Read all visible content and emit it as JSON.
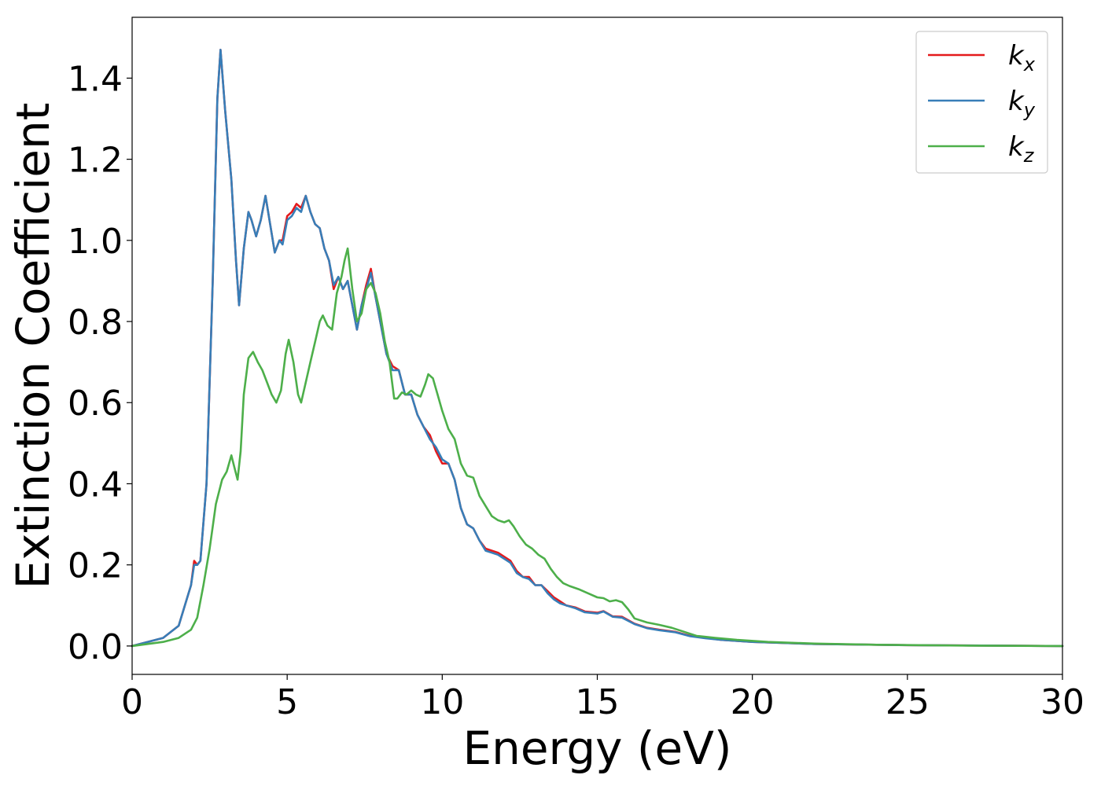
{
  "chart_data": {
    "type": "line",
    "xlabel": "Energy (eV)",
    "ylabel": "Extinction Coefficient",
    "xlim": [
      0,
      30
    ],
    "ylim": [
      -0.07,
      1.55
    ],
    "xticks": [
      0,
      5,
      10,
      15,
      20,
      25,
      30
    ],
    "yticks": [
      0.0,
      0.2,
      0.4,
      0.6,
      0.8,
      1.0,
      1.2,
      1.4
    ],
    "xtick_labels": [
      "0",
      "5",
      "10",
      "15",
      "20",
      "25",
      "30"
    ],
    "ytick_labels": [
      "0.0",
      "0.2",
      "0.4",
      "0.6",
      "0.8",
      "1.0",
      "1.2",
      "1.4"
    ],
    "grid": false,
    "legend_position": "top-right",
    "series": [
      {
        "name": "k",
        "sub": "x",
        "color": "#e41a1c",
        "points": [
          [
            0,
            0
          ],
          [
            0.5,
            0.01
          ],
          [
            1,
            0.02
          ],
          [
            1.5,
            0.05
          ],
          [
            1.9,
            0.15
          ],
          [
            2.0,
            0.21
          ],
          [
            2.1,
            0.2
          ],
          [
            2.2,
            0.21
          ],
          [
            2.4,
            0.4
          ],
          [
            2.6,
            0.9
          ],
          [
            2.75,
            1.35
          ],
          [
            2.85,
            1.47
          ],
          [
            3.0,
            1.32
          ],
          [
            3.2,
            1.15
          ],
          [
            3.35,
            0.95
          ],
          [
            3.45,
            0.84
          ],
          [
            3.6,
            0.98
          ],
          [
            3.75,
            1.07
          ],
          [
            3.85,
            1.05
          ],
          [
            4.0,
            1.01
          ],
          [
            4.15,
            1.05
          ],
          [
            4.3,
            1.11
          ],
          [
            4.45,
            1.04
          ],
          [
            4.6,
            0.97
          ],
          [
            4.75,
            1.0
          ],
          [
            4.85,
            1.0
          ],
          [
            5.0,
            1.06
          ],
          [
            5.15,
            1.07
          ],
          [
            5.3,
            1.09
          ],
          [
            5.45,
            1.08
          ],
          [
            5.6,
            1.11
          ],
          [
            5.75,
            1.07
          ],
          [
            5.9,
            1.04
          ],
          [
            6.05,
            1.03
          ],
          [
            6.2,
            0.98
          ],
          [
            6.35,
            0.95
          ],
          [
            6.5,
            0.88
          ],
          [
            6.65,
            0.91
          ],
          [
            6.8,
            0.88
          ],
          [
            6.95,
            0.9
          ],
          [
            7.1,
            0.84
          ],
          [
            7.25,
            0.78
          ],
          [
            7.4,
            0.84
          ],
          [
            7.55,
            0.89
          ],
          [
            7.7,
            0.93
          ],
          [
            7.85,
            0.86
          ],
          [
            8.0,
            0.8
          ],
          [
            8.2,
            0.72
          ],
          [
            8.4,
            0.69
          ],
          [
            8.6,
            0.68
          ],
          [
            8.8,
            0.62
          ],
          [
            9.0,
            0.62
          ],
          [
            9.2,
            0.57
          ],
          [
            9.4,
            0.54
          ],
          [
            9.6,
            0.52
          ],
          [
            9.8,
            0.48
          ],
          [
            10.0,
            0.45
          ],
          [
            10.2,
            0.45
          ],
          [
            10.4,
            0.41
          ],
          [
            10.6,
            0.34
          ],
          [
            10.8,
            0.3
          ],
          [
            11.0,
            0.29
          ],
          [
            11.2,
            0.26
          ],
          [
            11.4,
            0.24
          ],
          [
            11.6,
            0.235
          ],
          [
            11.8,
            0.23
          ],
          [
            12.0,
            0.22
          ],
          [
            12.2,
            0.21
          ],
          [
            12.4,
            0.185
          ],
          [
            12.6,
            0.17
          ],
          [
            12.8,
            0.17
          ],
          [
            13.0,
            0.15
          ],
          [
            13.2,
            0.15
          ],
          [
            13.4,
            0.135
          ],
          [
            13.6,
            0.12
          ],
          [
            13.8,
            0.11
          ],
          [
            14.0,
            0.1
          ],
          [
            14.3,
            0.095
          ],
          [
            14.6,
            0.085
          ],
          [
            15.0,
            0.082
          ],
          [
            15.2,
            0.086
          ],
          [
            15.5,
            0.073
          ],
          [
            15.8,
            0.072
          ],
          [
            16.2,
            0.055
          ],
          [
            16.6,
            0.045
          ],
          [
            17.0,
            0.04
          ],
          [
            17.5,
            0.035
          ],
          [
            18.0,
            0.025
          ],
          [
            18.5,
            0.02
          ],
          [
            19.0,
            0.015
          ],
          [
            20.0,
            0.01
          ],
          [
            22.0,
            0.005
          ],
          [
            25.0,
            0.002
          ],
          [
            30.0,
            0.0
          ]
        ]
      },
      {
        "name": "k",
        "sub": "y",
        "color": "#377eb8",
        "points": [
          [
            0,
            0
          ],
          [
            0.5,
            0.01
          ],
          [
            1,
            0.02
          ],
          [
            1.5,
            0.05
          ],
          [
            1.9,
            0.15
          ],
          [
            2.0,
            0.2
          ],
          [
            2.1,
            0.2
          ],
          [
            2.2,
            0.21
          ],
          [
            2.4,
            0.4
          ],
          [
            2.6,
            0.9
          ],
          [
            2.75,
            1.35
          ],
          [
            2.85,
            1.47
          ],
          [
            3.0,
            1.32
          ],
          [
            3.2,
            1.15
          ],
          [
            3.35,
            0.95
          ],
          [
            3.45,
            0.84
          ],
          [
            3.6,
            0.98
          ],
          [
            3.75,
            1.07
          ],
          [
            3.85,
            1.05
          ],
          [
            4.0,
            1.01
          ],
          [
            4.15,
            1.05
          ],
          [
            4.3,
            1.11
          ],
          [
            4.45,
            1.04
          ],
          [
            4.6,
            0.97
          ],
          [
            4.75,
            1.0
          ],
          [
            4.85,
            0.99
          ],
          [
            5.0,
            1.05
          ],
          [
            5.15,
            1.06
          ],
          [
            5.3,
            1.08
          ],
          [
            5.45,
            1.07
          ],
          [
            5.6,
            1.11
          ],
          [
            5.75,
            1.07
          ],
          [
            5.9,
            1.04
          ],
          [
            6.05,
            1.03
          ],
          [
            6.2,
            0.98
          ],
          [
            6.35,
            0.95
          ],
          [
            6.5,
            0.89
          ],
          [
            6.65,
            0.91
          ],
          [
            6.8,
            0.88
          ],
          [
            6.95,
            0.9
          ],
          [
            7.1,
            0.84
          ],
          [
            7.25,
            0.78
          ],
          [
            7.4,
            0.84
          ],
          [
            7.55,
            0.88
          ],
          [
            7.7,
            0.92
          ],
          [
            7.85,
            0.86
          ],
          [
            8.0,
            0.8
          ],
          [
            8.2,
            0.72
          ],
          [
            8.4,
            0.68
          ],
          [
            8.6,
            0.68
          ],
          [
            8.8,
            0.62
          ],
          [
            9.0,
            0.62
          ],
          [
            9.2,
            0.57
          ],
          [
            9.4,
            0.54
          ],
          [
            9.6,
            0.51
          ],
          [
            9.8,
            0.49
          ],
          [
            10.0,
            0.46
          ],
          [
            10.2,
            0.45
          ],
          [
            10.4,
            0.41
          ],
          [
            10.6,
            0.34
          ],
          [
            10.8,
            0.3
          ],
          [
            11.0,
            0.29
          ],
          [
            11.2,
            0.26
          ],
          [
            11.4,
            0.235
          ],
          [
            11.6,
            0.23
          ],
          [
            11.8,
            0.225
          ],
          [
            12.0,
            0.215
          ],
          [
            12.2,
            0.205
          ],
          [
            12.4,
            0.18
          ],
          [
            12.6,
            0.17
          ],
          [
            12.8,
            0.165
          ],
          [
            13.0,
            0.15
          ],
          [
            13.2,
            0.15
          ],
          [
            13.4,
            0.13
          ],
          [
            13.6,
            0.115
          ],
          [
            13.8,
            0.105
          ],
          [
            14.0,
            0.1
          ],
          [
            14.3,
            0.093
          ],
          [
            14.6,
            0.083
          ],
          [
            15.0,
            0.08
          ],
          [
            15.2,
            0.085
          ],
          [
            15.5,
            0.072
          ],
          [
            15.8,
            0.07
          ],
          [
            16.2,
            0.054
          ],
          [
            16.6,
            0.044
          ],
          [
            17.0,
            0.039
          ],
          [
            17.5,
            0.034
          ],
          [
            18.0,
            0.024
          ],
          [
            18.5,
            0.019
          ],
          [
            19.0,
            0.015
          ],
          [
            20.0,
            0.01
          ],
          [
            22.0,
            0.005
          ],
          [
            25.0,
            0.002
          ],
          [
            30.0,
            0.0
          ]
        ]
      },
      {
        "name": "k",
        "sub": "z",
        "color": "#4daf4a",
        "points": [
          [
            0,
            0
          ],
          [
            0.5,
            0.005
          ],
          [
            1,
            0.01
          ],
          [
            1.5,
            0.02
          ],
          [
            1.9,
            0.04
          ],
          [
            2.1,
            0.07
          ],
          [
            2.3,
            0.15
          ],
          [
            2.5,
            0.24
          ],
          [
            2.7,
            0.35
          ],
          [
            2.9,
            0.41
          ],
          [
            3.05,
            0.43
          ],
          [
            3.2,
            0.47
          ],
          [
            3.3,
            0.44
          ],
          [
            3.4,
            0.41
          ],
          [
            3.5,
            0.48
          ],
          [
            3.6,
            0.62
          ],
          [
            3.75,
            0.71
          ],
          [
            3.9,
            0.725
          ],
          [
            4.05,
            0.7
          ],
          [
            4.2,
            0.68
          ],
          [
            4.35,
            0.65
          ],
          [
            4.5,
            0.62
          ],
          [
            4.65,
            0.6
          ],
          [
            4.8,
            0.63
          ],
          [
            4.95,
            0.72
          ],
          [
            5.05,
            0.755
          ],
          [
            5.2,
            0.7
          ],
          [
            5.35,
            0.62
          ],
          [
            5.45,
            0.6
          ],
          [
            5.6,
            0.65
          ],
          [
            5.75,
            0.7
          ],
          [
            5.9,
            0.75
          ],
          [
            6.05,
            0.8
          ],
          [
            6.15,
            0.815
          ],
          [
            6.3,
            0.79
          ],
          [
            6.45,
            0.78
          ],
          [
            6.6,
            0.87
          ],
          [
            6.75,
            0.91
          ],
          [
            6.85,
            0.95
          ],
          [
            6.95,
            0.98
          ],
          [
            7.1,
            0.88
          ],
          [
            7.25,
            0.8
          ],
          [
            7.4,
            0.82
          ],
          [
            7.55,
            0.88
          ],
          [
            7.7,
            0.895
          ],
          [
            7.85,
            0.87
          ],
          [
            8.0,
            0.82
          ],
          [
            8.15,
            0.75
          ],
          [
            8.3,
            0.7
          ],
          [
            8.45,
            0.61
          ],
          [
            8.55,
            0.61
          ],
          [
            8.7,
            0.625
          ],
          [
            8.85,
            0.62
          ],
          [
            9.0,
            0.63
          ],
          [
            9.15,
            0.62
          ],
          [
            9.3,
            0.615
          ],
          [
            9.45,
            0.645
          ],
          [
            9.55,
            0.67
          ],
          [
            9.7,
            0.66
          ],
          [
            9.85,
            0.62
          ],
          [
            10.0,
            0.58
          ],
          [
            10.2,
            0.535
          ],
          [
            10.4,
            0.51
          ],
          [
            10.6,
            0.45
          ],
          [
            10.8,
            0.42
          ],
          [
            11.0,
            0.415
          ],
          [
            11.2,
            0.37
          ],
          [
            11.4,
            0.345
          ],
          [
            11.6,
            0.32
          ],
          [
            11.8,
            0.31
          ],
          [
            12.0,
            0.305
          ],
          [
            12.15,
            0.31
          ],
          [
            12.3,
            0.295
          ],
          [
            12.5,
            0.27
          ],
          [
            12.7,
            0.25
          ],
          [
            12.9,
            0.24
          ],
          [
            13.1,
            0.225
          ],
          [
            13.3,
            0.215
          ],
          [
            13.5,
            0.19
          ],
          [
            13.7,
            0.17
          ],
          [
            13.9,
            0.155
          ],
          [
            14.1,
            0.148
          ],
          [
            14.4,
            0.14
          ],
          [
            14.7,
            0.13
          ],
          [
            15.0,
            0.12
          ],
          [
            15.2,
            0.118
          ],
          [
            15.4,
            0.11
          ],
          [
            15.6,
            0.113
          ],
          [
            15.8,
            0.108
          ],
          [
            16.0,
            0.09
          ],
          [
            16.2,
            0.068
          ],
          [
            16.6,
            0.058
          ],
          [
            17.0,
            0.052
          ],
          [
            17.4,
            0.045
          ],
          [
            17.8,
            0.035
          ],
          [
            18.2,
            0.025
          ],
          [
            18.8,
            0.02
          ],
          [
            19.5,
            0.015
          ],
          [
            20.5,
            0.01
          ],
          [
            22.0,
            0.006
          ],
          [
            24.0,
            0.003
          ],
          [
            27.0,
            0.001
          ],
          [
            30.0,
            0.0
          ]
        ]
      }
    ]
  }
}
